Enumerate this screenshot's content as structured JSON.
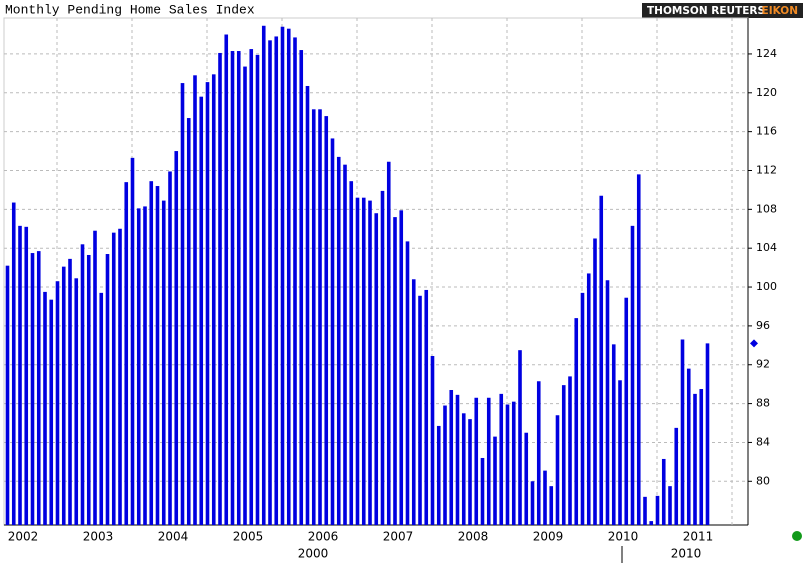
{
  "chart_data": {
    "type": "bar",
    "title": "Monthly Pending Home Sales Index",
    "brand": "THOMSON REUTERS",
    "brand_product": "EIKON",
    "categories": [
      null,
      null,
      "2002",
      null,
      null,
      null,
      null,
      null,
      null,
      null,
      null,
      null,
      null,
      null,
      "2003",
      null,
      null,
      null,
      null,
      null,
      null,
      null,
      null,
      null,
      null,
      null,
      "2004",
      null,
      null,
      null,
      null,
      null,
      null,
      null,
      null,
      null,
      null,
      null,
      "2005",
      null,
      null,
      null,
      null,
      null,
      null,
      null,
      null,
      null,
      null,
      null,
      "2006",
      null,
      null,
      null,
      null,
      null,
      null,
      null,
      null,
      null,
      null,
      null,
      "2007",
      null,
      null,
      null,
      null,
      null,
      null,
      null,
      null,
      null,
      null,
      null,
      "2008",
      null,
      null,
      null,
      null,
      null,
      null,
      null,
      null,
      null,
      null,
      null,
      "2009",
      null,
      null,
      null,
      null,
      null,
      null,
      null,
      null,
      null,
      null,
      null,
      "2010",
      null,
      null,
      null,
      null,
      null,
      null,
      null,
      null,
      null,
      null,
      null,
      "2011",
      null,
      null
    ],
    "x_secondary_labels": [
      "2000",
      "2010"
    ],
    "values": [
      102.2,
      108.7,
      106.3,
      106.2,
      103.5,
      103.7,
      99.5,
      98.7,
      100.6,
      102.1,
      102.9,
      100.9,
      104.4,
      103.3,
      105.8,
      99.4,
      103.4,
      105.6,
      106.0,
      110.8,
      113.3,
      108.1,
      108.3,
      110.9,
      110.4,
      108.9,
      111.9,
      114.0,
      121.0,
      117.4,
      121.8,
      119.6,
      121.1,
      121.9,
      124.1,
      126.0,
      124.3,
      124.3,
      122.7,
      124.5,
      123.9,
      126.9,
      125.4,
      125.8,
      126.8,
      126.6,
      125.7,
      124.4,
      120.7,
      118.3,
      118.3,
      117.6,
      115.3,
      113.4,
      112.6,
      110.9,
      109.2,
      109.2,
      108.9,
      107.6,
      109.9,
      112.9,
      107.2,
      107.9,
      104.7,
      100.8,
      99.1,
      99.7,
      92.9,
      85.7,
      87.8,
      89.4,
      88.9,
      87.0,
      86.4,
      88.6,
      82.4,
      88.6,
      84.6,
      89.0,
      87.9,
      88.2,
      93.5,
      85.0,
      80.0,
      90.3,
      81.1,
      79.5,
      86.8,
      89.9,
      90.8,
      96.8,
      99.4,
      101.4,
      105.0,
      109.4,
      100.7,
      94.1,
      90.4,
      98.9,
      106.3,
      111.6,
      78.4,
      75.9,
      78.5,
      82.3,
      79.5,
      85.5,
      94.6,
      91.6,
      89.0,
      89.5,
      94.2
    ],
    "color": "#0000e0",
    "ylim": [
      75.5,
      127.7
    ],
    "yticks": [
      80,
      84,
      88,
      92,
      96,
      100,
      104,
      108,
      112,
      116,
      120,
      124
    ],
    "grid": true
  }
}
